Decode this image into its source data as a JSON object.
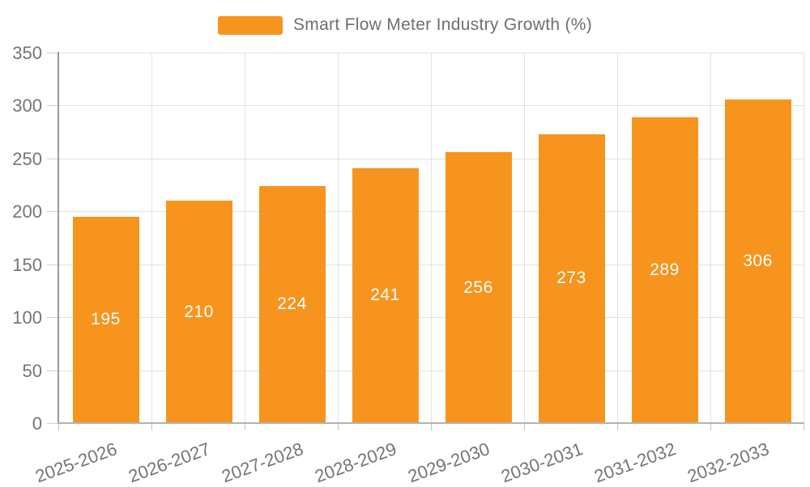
{
  "legend": {
    "label": "Smart Flow Meter Industry Growth (%)"
  },
  "chart_data": {
    "type": "bar",
    "title": "Smart Flow Meter Industry Growth (%)",
    "series_name": "Smart Flow Meter Industry Growth (%)",
    "categories": [
      "2025-2026",
      "2026-2027",
      "2027-2028",
      "2028-2029",
      "2029-2030",
      "2030-2031",
      "2031-2032",
      "2032-2033"
    ],
    "values": [
      195,
      210,
      224,
      241,
      256,
      273,
      289,
      306
    ],
    "value_labels": [
      "195",
      "210",
      "224",
      "241",
      "256",
      "273",
      "289",
      "306"
    ],
    "ylim": [
      0,
      350
    ],
    "yticks": [
      0,
      50,
      100,
      150,
      200,
      250,
      300,
      350
    ],
    "grid": true,
    "legend_position": "top-center",
    "bar_color": "#f7941e",
    "value_label_color": "#ffffff",
    "axis_label_color": "#757575",
    "gridline_color": "#e2e2e2"
  }
}
